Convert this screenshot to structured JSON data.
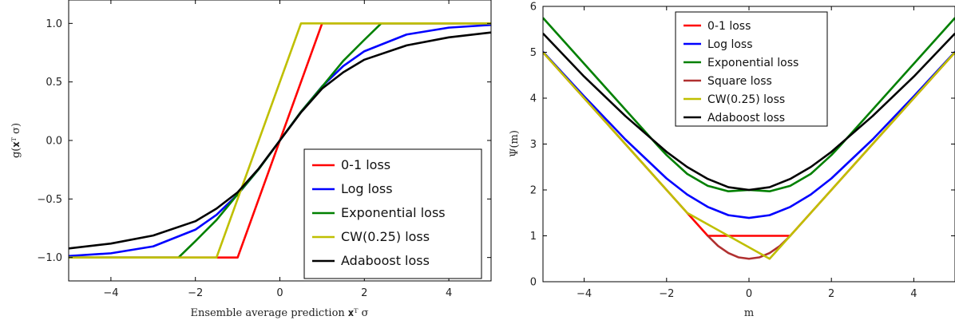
{
  "chart_data": [
    {
      "type": "line",
      "title": "",
      "xlabel": "Ensemble average prediction 𝐱ᵀ σ",
      "ylabel": "g(𝐱ᵀ σ)",
      "xlim": [
        -5,
        5
      ],
      "ylim": [
        -1.2,
        1.2
      ],
      "xticks": [
        -4,
        -2,
        0,
        2,
        4
      ],
      "xtick_labels": [
        "−4",
        "−2",
        "0",
        "2",
        "4"
      ],
      "yticks": [
        -1.0,
        -0.5,
        0.0,
        0.5,
        1.0
      ],
      "ytick_labels": [
        "−1.0",
        "−0.5",
        "0.0",
        "0.5",
        "1.0"
      ],
      "grid": false,
      "legend_position": "bottom-right",
      "series": [
        {
          "name": "0-1 loss",
          "color": "#ff0000",
          "x": [
            -5,
            -1,
            1,
            5
          ],
          "y": [
            -1,
            -1,
            1,
            1
          ]
        },
        {
          "name": "Log loss",
          "color": "#0000ff",
          "x": [
            -5,
            -4,
            -3,
            -2,
            -1.5,
            -1,
            -0.5,
            0,
            0.5,
            1,
            1.5,
            2,
            3,
            4,
            5
          ],
          "y": [
            -0.987,
            -0.964,
            -0.905,
            -0.762,
            -0.635,
            -0.462,
            -0.245,
            0,
            0.245,
            0.462,
            0.635,
            0.762,
            0.905,
            0.964,
            0.987
          ]
        },
        {
          "name": "Exponential loss",
          "color": "#008000",
          "x": [
            -5,
            -2.4,
            -2,
            -1.5,
            -1,
            -0.5,
            0,
            0.5,
            1,
            1.5,
            2,
            2.4,
            5
          ],
          "y": [
            -1,
            -1,
            -0.86,
            -0.68,
            -0.46,
            -0.245,
            0,
            0.245,
            0.46,
            0.68,
            0.86,
            1,
            1
          ]
        },
        {
          "name": "CW(0.25) loss",
          "color": "#bfbf00",
          "x": [
            -5,
            -1.5,
            0.5,
            5
          ],
          "y": [
            -1,
            -1,
            1,
            1
          ]
        },
        {
          "name": "Adaboost loss",
          "color": "#000000",
          "x": [
            -5,
            -4,
            -3,
            -2,
            -1.5,
            -1,
            -0.5,
            0,
            0.5,
            1,
            1.5,
            2,
            3,
            4,
            5
          ],
          "y": [
            -0.923,
            -0.881,
            -0.812,
            -0.69,
            -0.582,
            -0.443,
            -0.24,
            0,
            0.24,
            0.443,
            0.582,
            0.69,
            0.812,
            0.881,
            0.923
          ]
        }
      ]
    },
    {
      "type": "line",
      "title": "",
      "xlabel": "m",
      "ylabel": "Ψ(m)",
      "xlim": [
        -5,
        5
      ],
      "ylim": [
        0,
        6
      ],
      "xticks": [
        -4,
        -2,
        0,
        2,
        4
      ],
      "xtick_labels": [
        "−4",
        "−2",
        "0",
        "2",
        "4"
      ],
      "yticks": [
        0,
        1,
        2,
        3,
        4,
        5,
        6
      ],
      "ytick_labels": [
        "0",
        "1",
        "2",
        "3",
        "4",
        "5",
        "6"
      ],
      "grid": false,
      "legend_position": "top-center",
      "series": [
        {
          "name": "0-1 loss",
          "color": "#ff0000",
          "x": [
            -5,
            -1,
            1,
            5
          ],
          "y": [
            5,
            1,
            1,
            5
          ]
        },
        {
          "name": "Log loss",
          "color": "#0000ff",
          "x": [
            -5,
            -4,
            -3,
            -2,
            -1.5,
            -1,
            -0.5,
            0,
            0.5,
            1,
            1.5,
            2,
            3,
            4,
            5
          ],
          "y": [
            5.01,
            4.04,
            3.1,
            2.25,
            1.9,
            1.63,
            1.45,
            1.39,
            1.45,
            1.63,
            1.9,
            2.25,
            3.1,
            4.04,
            5.01
          ]
        },
        {
          "name": "Exponential loss",
          "color": "#008000",
          "x": [
            -5,
            -4,
            -3,
            -2.5,
            -2.2,
            -2,
            -1.5,
            -1,
            -0.5,
            0,
            0.5,
            1,
            1.5,
            2,
            2.2,
            2.5,
            3,
            4,
            5
          ],
          "y": [
            5.75,
            4.75,
            3.75,
            3.25,
            2.95,
            2.76,
            2.35,
            2.09,
            1.97,
            2.0,
            1.97,
            2.09,
            2.35,
            2.76,
            2.95,
            3.25,
            3.75,
            4.75,
            5.75
          ]
        },
        {
          "name": "Square loss",
          "color": "#b03030",
          "x": [
            -1,
            -0.75,
            -0.5,
            -0.25,
            0,
            0.25,
            0.5,
            0.75,
            1
          ],
          "y": [
            1,
            0.78,
            0.625,
            0.53,
            0.5,
            0.53,
            0.625,
            0.78,
            1
          ]
        },
        {
          "name": "CW(0.25) loss",
          "color": "#bfbf00",
          "x": [
            -5,
            -1.5,
            0.5,
            5
          ],
          "y": [
            5,
            1.5,
            0.5,
            5
          ]
        },
        {
          "name": "Adaboost loss",
          "color": "#000000",
          "x": [
            -5,
            -4,
            -3,
            -2,
            -1.5,
            -1,
            -0.5,
            0,
            0.5,
            1,
            1.5,
            2,
            3,
            4,
            5
          ],
          "y": [
            5.41,
            4.47,
            3.61,
            2.83,
            2.5,
            2.24,
            2.06,
            2.0,
            2.06,
            2.24,
            2.5,
            2.83,
            3.61,
            4.47,
            5.41
          ]
        }
      ]
    }
  ]
}
